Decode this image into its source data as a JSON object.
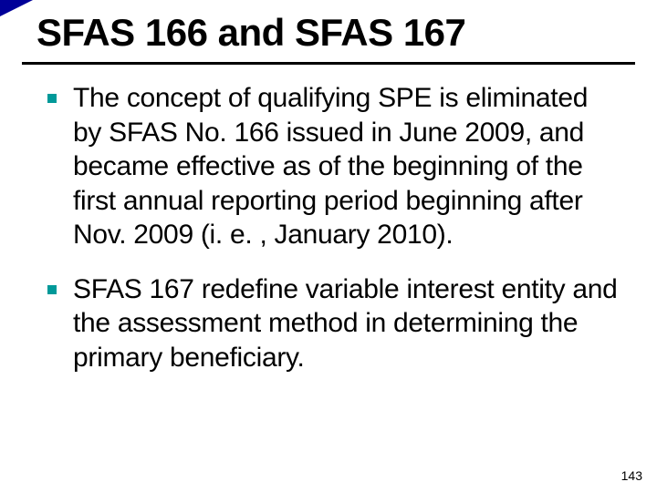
{
  "slide": {
    "title": "SFAS 166 and SFAS 167",
    "bullets": [
      {
        "text": "The concept of qualifying SPE is eliminated by SFAS No. 166 issued in June 2009, and became effective as of the beginning of the first annual reporting period beginning after Nov. 2009 (i. e. , January 2010)."
      },
      {
        "text": "SFAS 167 redefine variable interest entity and the assessment method in determining the primary beneficiary."
      }
    ],
    "page_number": "143"
  },
  "style": {
    "accent_color": "#000099",
    "bullet_color": "#009999",
    "title_fontsize": 42,
    "body_fontsize": 30,
    "underline_color": "#000000",
    "background_color": "#ffffff"
  }
}
